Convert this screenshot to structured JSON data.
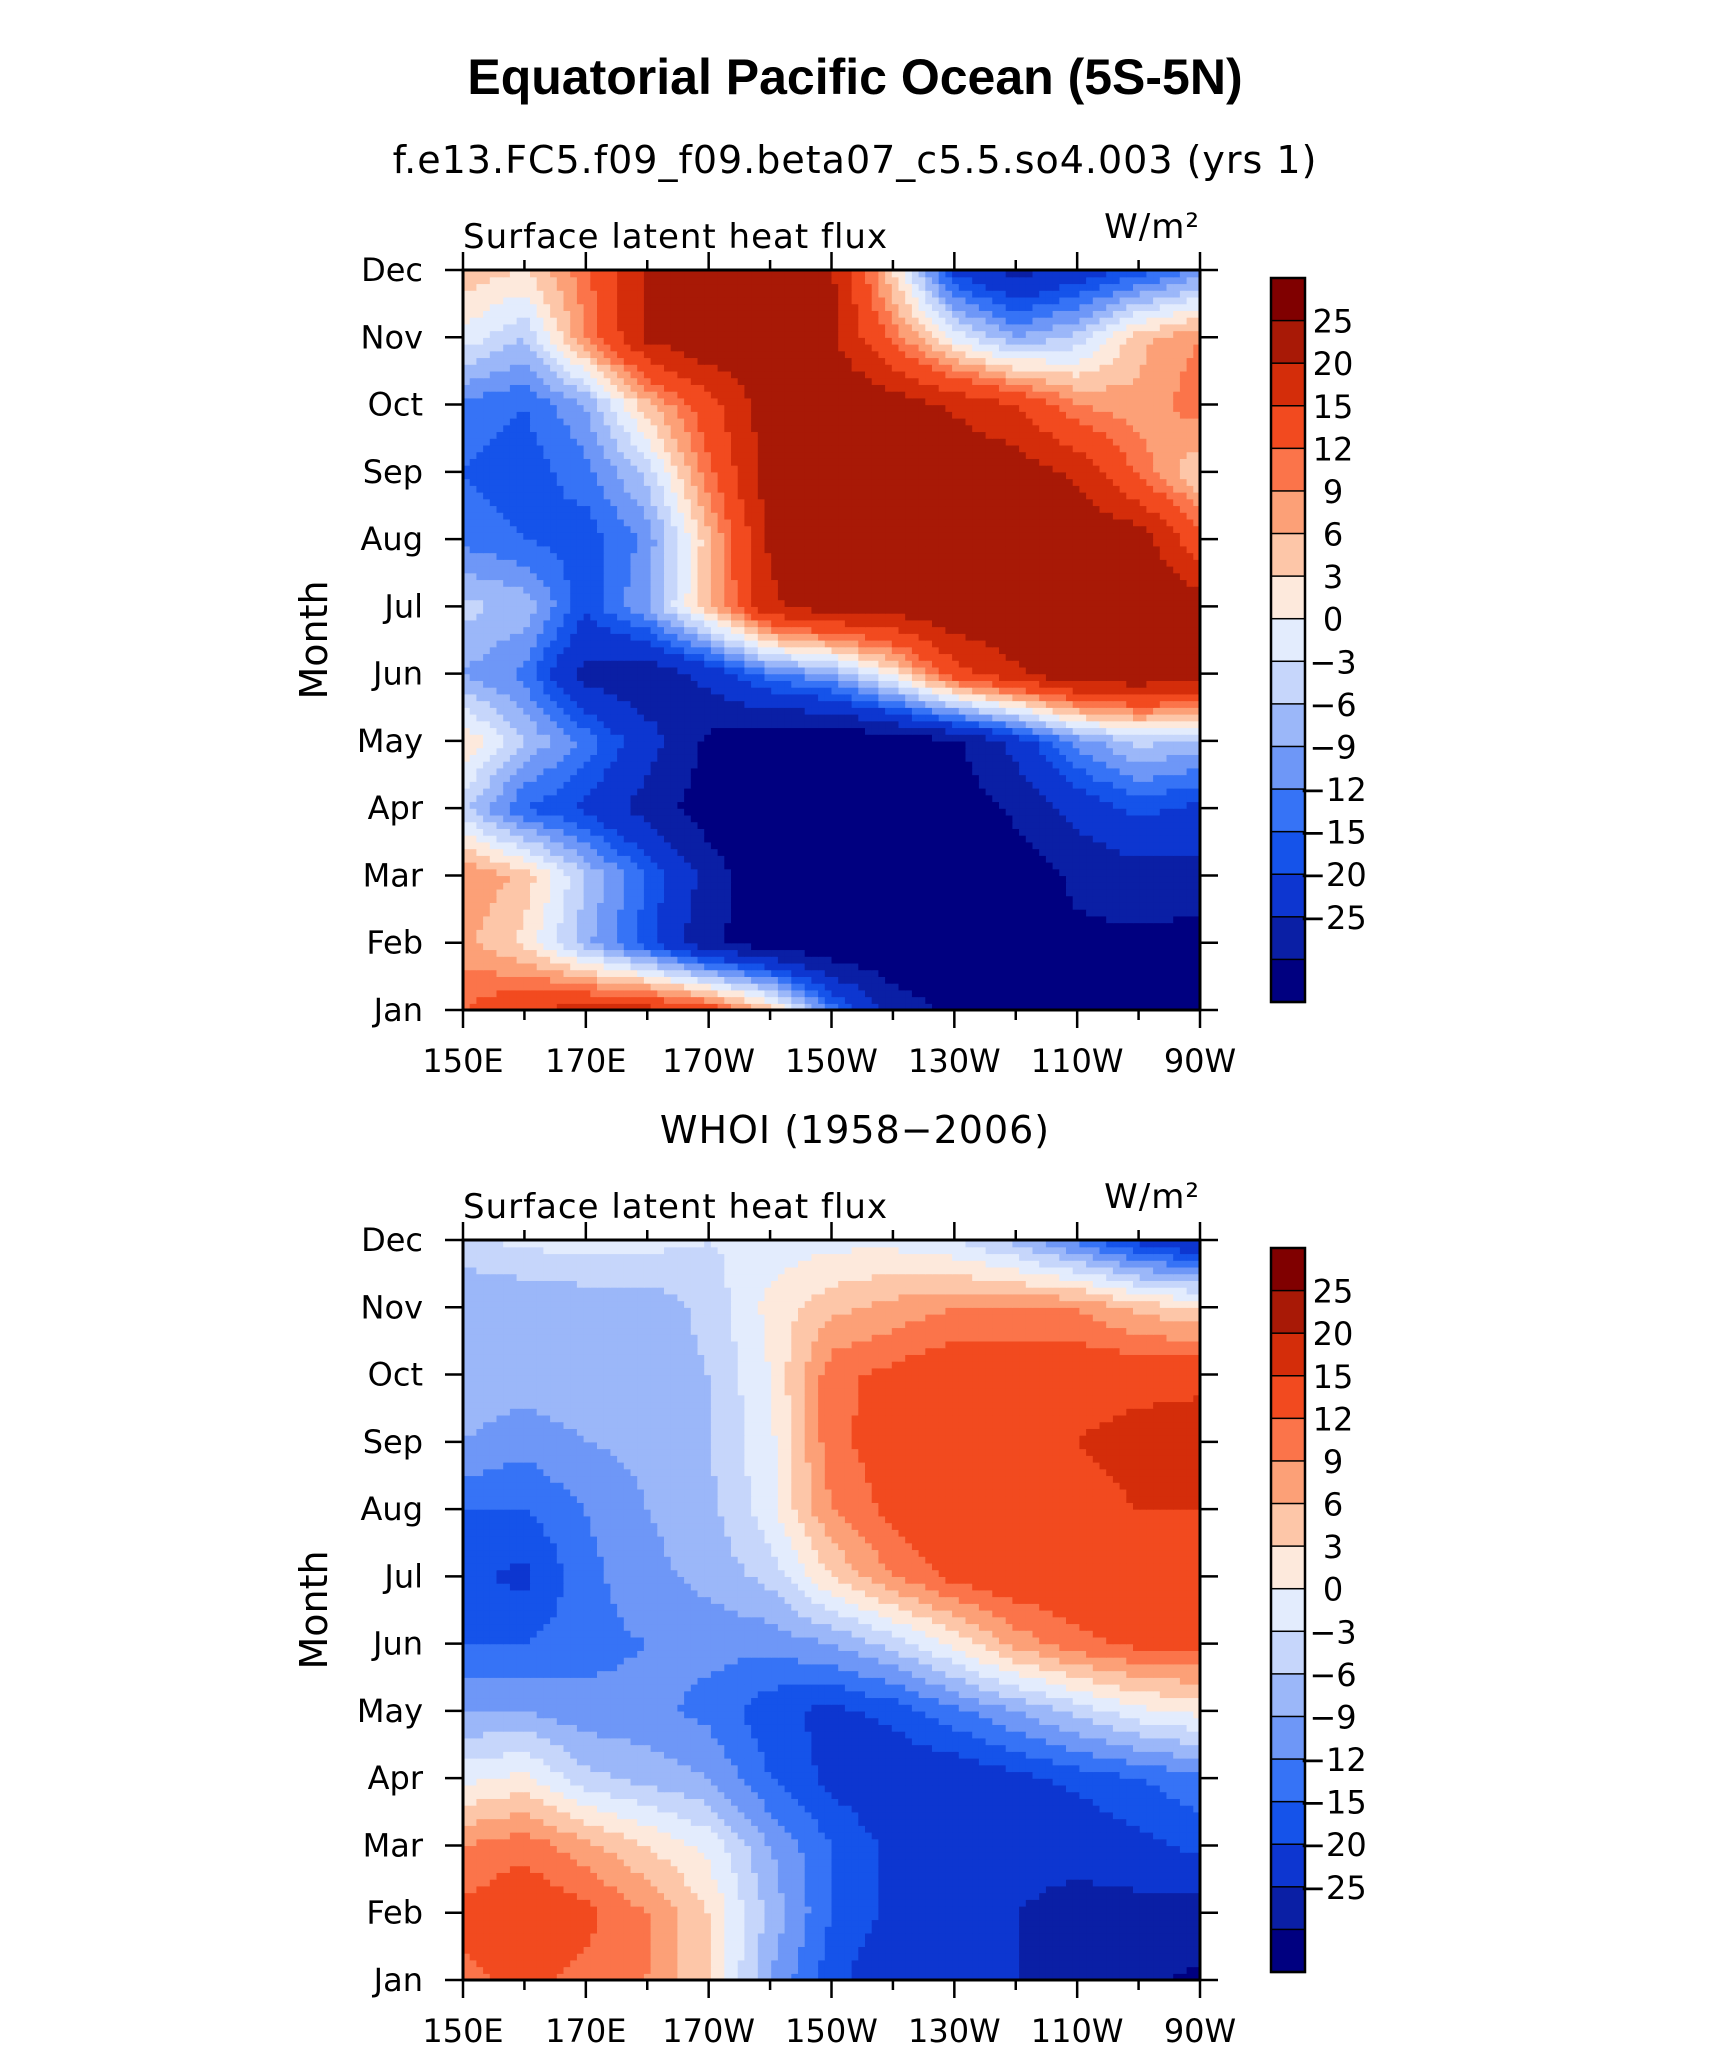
{
  "title": "Equatorial Pacific Ocean (5S-5N)",
  "colors": [
    "#000080",
    "#0a1fa5",
    "#0d36d0",
    "#1553ea",
    "#3673f6",
    "#6e97f7",
    "#9bb7f9",
    "#c6d6fb",
    "#e3ecfd",
    "#fde9dc",
    "#fdc6a8",
    "#fca077",
    "#fb744a",
    "#f24a1f",
    "#d42d0a",
    "#a81906",
    "#800000"
  ],
  "chart_data": [
    {
      "type": "heatmap",
      "title": "f.e13.FC5.f09_f09.beta07_c5.5.so4.003 (yrs  1)",
      "variable": "Surface latent heat flux",
      "units": "W/m²",
      "ylabel": "Month",
      "x": [
        150,
        160,
        170,
        180,
        190,
        200,
        210,
        220,
        230,
        240,
        250,
        260,
        270
      ],
      "xticks": [
        150,
        170,
        190,
        210,
        230,
        250,
        270
      ],
      "xtick_labels": [
        "150E",
        "170E",
        "170W",
        "150W",
        "130W",
        "110W",
        "90W"
      ],
      "months": [
        "Jan",
        "Feb",
        "Mar",
        "Apr",
        "May",
        "Jun",
        "Jul",
        "Aug",
        "Sep",
        "Oct",
        "Nov",
        "Dec"
      ],
      "levels": [
        -25,
        -20,
        -15,
        -12,
        -9,
        -6,
        -3,
        0,
        3,
        6,
        9,
        12,
        15,
        20,
        25
      ],
      "level_labels": [
        "25",
        "20",
        "15",
        "12",
        "9",
        "6",
        "3",
        "0",
        "−3",
        "−6",
        "−9",
        "−12",
        "−15",
        "−20",
        "−25"
      ],
      "values": [
        [
          15,
          20,
          22,
          22,
          18,
          8,
          -10,
          -22,
          -26,
          -28,
          -28,
          -27,
          -28
        ],
        [
          10,
          5,
          -5,
          -14,
          -24,
          -28,
          -30,
          -30,
          -30,
          -28,
          -26,
          -26,
          -27
        ],
        [
          12,
          8,
          -3,
          -12,
          -22,
          -30,
          -32,
          -32,
          -30,
          -28,
          -24,
          -22,
          -22
        ],
        [
          -2,
          -12,
          -16,
          -22,
          -28,
          -30,
          -30,
          -30,
          -28,
          -24,
          -18,
          -14,
          -16
        ],
        [
          6,
          -3,
          -10,
          -18,
          -26,
          -30,
          -30,
          -29,
          -26,
          -18,
          -8,
          -2,
          -4
        ],
        [
          -6,
          -10,
          -22,
          -24,
          -18,
          -10,
          -6,
          4,
          18,
          24,
          30,
          30,
          28
        ],
        [
          -2,
          -4,
          -14,
          -6,
          8,
          24,
          28,
          28,
          30,
          30,
          30,
          30,
          28
        ],
        [
          -10,
          -12,
          -14,
          -8,
          8,
          26,
          30,
          30,
          30,
          30,
          30,
          28,
          16
        ],
        [
          -12,
          -14,
          -10,
          -2,
          14,
          28,
          30,
          30,
          30,
          28,
          24,
          14,
          6
        ],
        [
          -10,
          -12,
          -6,
          8,
          18,
          28,
          30,
          28,
          24,
          20,
          12,
          10,
          14
        ],
        [
          2,
          -3,
          12,
          26,
          30,
          28,
          26,
          14,
          2,
          -6,
          -2,
          8,
          12
        ],
        [
          8,
          6,
          14,
          26,
          30,
          30,
          26,
          6,
          -16,
          -22,
          -18,
          -14,
          -8
        ]
      ]
    },
    {
      "type": "heatmap",
      "title": "WHOI (1958−2006)",
      "variable": "Surface latent heat flux",
      "units": "W/m²",
      "ylabel": "Month",
      "x": [
        150,
        160,
        170,
        180,
        190,
        200,
        210,
        220,
        230,
        240,
        250,
        260,
        270
      ],
      "xticks": [
        150,
        170,
        190,
        210,
        230,
        250,
        270
      ],
      "xtick_labels": [
        "150E",
        "170E",
        "170W",
        "150W",
        "130W",
        "110W",
        "90W"
      ],
      "months": [
        "Jan",
        "Feb",
        "Mar",
        "Apr",
        "May",
        "Jun",
        "Jul",
        "Aug",
        "Sep",
        "Oct",
        "Nov",
        "Dec"
      ],
      "levels": [
        -25,
        -20,
        -15,
        -12,
        -9,
        -6,
        -3,
        0,
        3,
        6,
        9,
        12,
        15,
        20,
        25
      ],
      "level_labels": [
        "25",
        "20",
        "15",
        "12",
        "9",
        "6",
        "3",
        "0",
        "−3",
        "−6",
        "−9",
        "−12",
        "−15",
        "−20",
        "−25"
      ],
      "values": [
        [
          14,
          16,
          14,
          12,
          6,
          -6,
          -14,
          -18,
          -20,
          -20,
          -22,
          -24,
          -26
        ],
        [
          16,
          18,
          16,
          12,
          6,
          -4,
          -12,
          -16,
          -18,
          -20,
          -22,
          -22,
          -22
        ],
        [
          12,
          14,
          10,
          6,
          2,
          -6,
          -12,
          -16,
          -18,
          -18,
          -18,
          -16,
          -14
        ],
        [
          2,
          4,
          -2,
          -4,
          -6,
          -12,
          -16,
          -18,
          -18,
          -16,
          -14,
          -12,
          -10
        ],
        [
          -6,
          -6,
          -8,
          -8,
          -10,
          -14,
          -16,
          -14,
          -10,
          -6,
          -2,
          2,
          4
        ],
        [
          -12,
          -12,
          -10,
          -9,
          -8,
          -8,
          -6,
          -2,
          4,
          10,
          14,
          16,
          16
        ],
        [
          -14,
          -16,
          -10,
          -7,
          -5,
          -2,
          6,
          12,
          16,
          18,
          18,
          18,
          18
        ],
        [
          -12,
          -12,
          -9,
          -6,
          -4,
          2,
          12,
          16,
          20,
          16,
          18,
          20,
          20
        ],
        [
          -6,
          -8,
          -6,
          -5,
          -3,
          2,
          14,
          17,
          20,
          18,
          20,
          22,
          24
        ],
        [
          -4,
          -4,
          -4,
          -5,
          -3,
          3,
          14,
          16,
          18,
          18,
          18,
          18,
          18
        ],
        [
          -6,
          -6,
          -5,
          -5,
          -2,
          4,
          8,
          10,
          12,
          12,
          12,
          8,
          6
        ],
        [
          -1,
          1,
          1,
          1,
          0,
          1,
          2,
          2,
          0,
          -4,
          -10,
          -16,
          -20
        ]
      ]
    }
  ]
}
